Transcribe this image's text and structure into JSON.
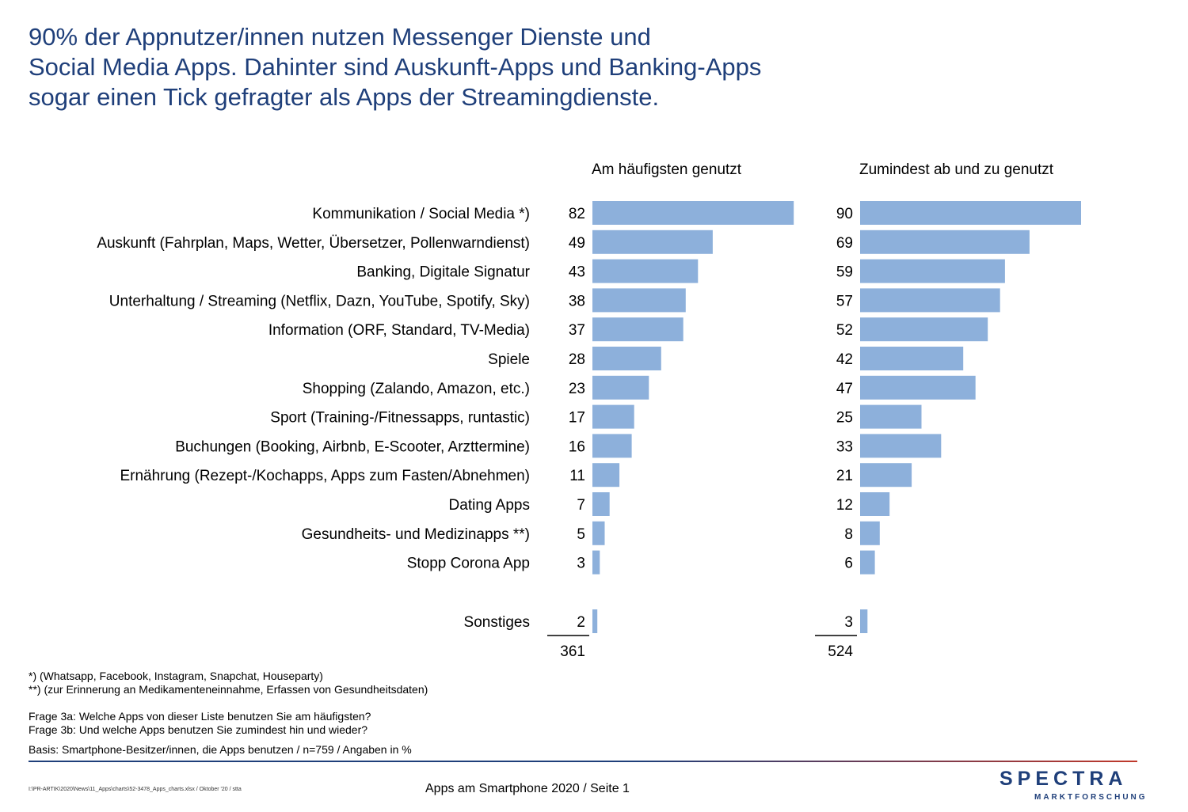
{
  "title_lines": [
    "90% der Appnutzer/innen nutzen Messenger Dienste und",
    "Social Media Apps. Dahinter sind Auskunft-Apps und Banking-Apps",
    "sogar einen Tick gefragter als Apps der Streamingdienste."
  ],
  "chart_data": {
    "type": "bar",
    "orientation": "horizontal",
    "categories": [
      "Kommunikation / Social Media *)",
      "Auskunft (Fahrplan, Maps, Wetter, Übersetzer, Pollenwarndienst)",
      "Banking, Digitale Signatur",
      "Unterhaltung / Streaming (Netflix, Dazn, YouTube, Spotify, Sky)",
      "Information (ORF, Standard, TV-Media)",
      "Spiele",
      "Shopping (Zalando, Amazon, etc.)",
      "Sport (Training-/Fitnessapps, runtastic)",
      "Buchungen (Booking, Airbnb, E-Scooter, Arzttermine)",
      "Ernährung (Rezept-/Kochapps, Apps zum Fasten/Abnehmen)",
      "Dating Apps",
      "Gesundheits- und Medizinapps **)",
      "Stopp Corona App",
      "Sonstiges"
    ],
    "series": [
      {
        "name": "Am häufigsten genutzt",
        "values": [
          82,
          49,
          43,
          38,
          37,
          28,
          23,
          17,
          16,
          11,
          7,
          5,
          3,
          2
        ],
        "total": "361"
      },
      {
        "name": "Zumindest ab und zu genutzt",
        "values": [
          90,
          69,
          59,
          57,
          52,
          42,
          47,
          25,
          33,
          21,
          12,
          8,
          6,
          3
        ],
        "total": "524"
      }
    ],
    "unit": "%",
    "bar_color": "#8db0db",
    "data_labels": true,
    "grid": false
  },
  "notes": {
    "footnote1": "*) (Whatsapp, Facebook, Instagram, Snapchat, Houseparty)",
    "footnote2": "**) (zur Erinnerung an Medikamenteneinnahme, Erfassen von Gesundheitsdaten)",
    "question_a": "Frage 3a: Welche Apps von dieser Liste benutzen Sie am häufigsten?",
    "question_b": "Frage 3b: Und welche Apps benutzen Sie zumindest hin und wieder?",
    "basis": "Basis: Smartphone-Besitzer/innen, die Apps benutzen / n=759 / Angaben in %"
  },
  "footer": {
    "file_path": "I:\\PR-ARTIK\\2020\\News\\11_Apps\\charts\\52-3478_Apps_charts.xlsx / Oktober '20 / stta",
    "page_label": "Apps am Smartphone 2020  /  Seite  1"
  },
  "logo": {
    "wordmark": "SPECTRA",
    "subline": "MARKTFORSCHUNG"
  },
  "colors": {
    "title": "#1f3f7a",
    "bars": "#8db0db",
    "accent": "#c0392b"
  }
}
